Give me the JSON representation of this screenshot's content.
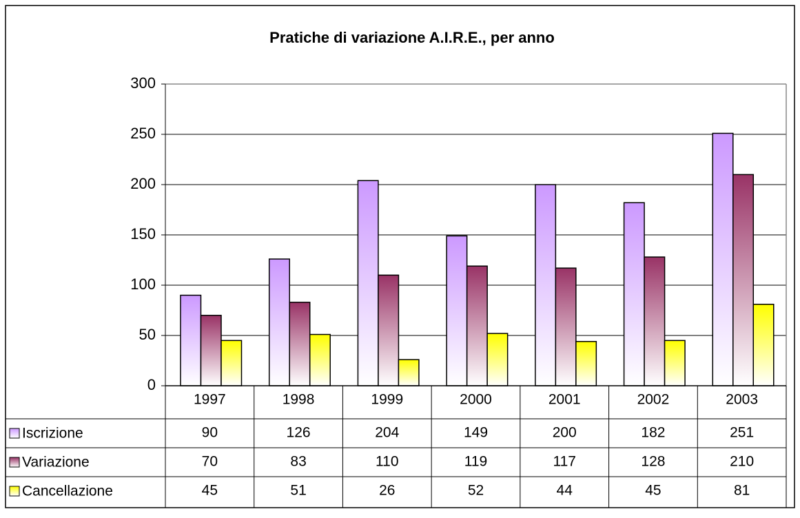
{
  "chart_data": {
    "type": "bar",
    "title": "Pratiche di variazione A.I.R.E., per anno",
    "categories": [
      "1997",
      "1998",
      "1999",
      "2000",
      "2001",
      "2002",
      "2003"
    ],
    "series": [
      {
        "name": "Iscrizione",
        "color": "#cc99ff",
        "values": [
          90,
          126,
          204,
          149,
          200,
          182,
          251
        ]
      },
      {
        "name": "Variazione",
        "color": "#993366",
        "values": [
          70,
          83,
          110,
          119,
          117,
          128,
          210
        ]
      },
      {
        "name": "Cancellazione",
        "color": "#ffff00",
        "values": [
          45,
          51,
          26,
          52,
          44,
          45,
          81
        ]
      }
    ],
    "ylim": [
      0,
      300
    ],
    "yticks": [
      0,
      50,
      100,
      150,
      200,
      250,
      300
    ],
    "grid": true
  }
}
